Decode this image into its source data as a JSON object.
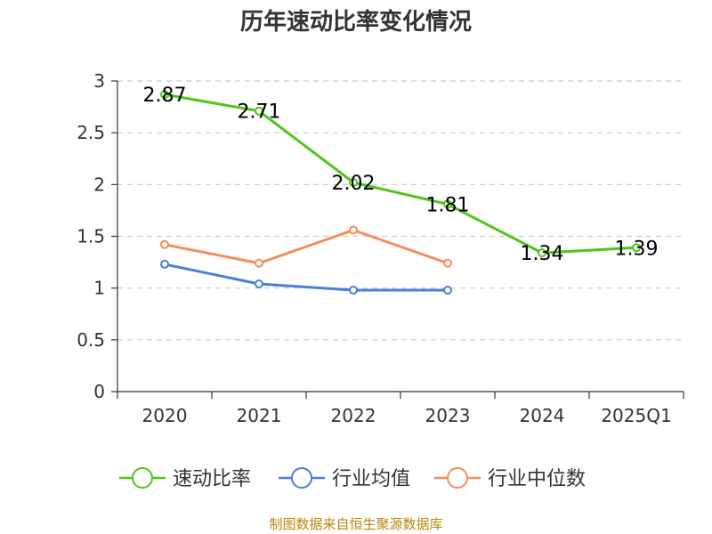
{
  "chart_data": {
    "type": "line",
    "title": "历年速动比率变化情况",
    "categories": [
      "2020",
      "2021",
      "2022",
      "2023",
      "2024",
      "2025Q1"
    ],
    "ylim": [
      0,
      3
    ],
    "yticks": [
      "0",
      "0.5",
      "1",
      "1.5",
      "2",
      "2.5",
      "3"
    ],
    "grid": true,
    "legend_position": "bottom",
    "series": [
      {
        "name": "速动比率",
        "color": "#52c41a",
        "values": [
          2.87,
          2.71,
          2.02,
          1.81,
          1.34,
          1.39
        ],
        "labels": [
          "2.87",
          "2.71",
          "2.02",
          "1.81",
          "1.34",
          "1.39"
        ]
      },
      {
        "name": "行业均值",
        "color": "#4a7fdc",
        "values": [
          1.23,
          1.04,
          0.98,
          0.98,
          null,
          null
        ]
      },
      {
        "name": "行业中位数",
        "color": "#f48d5a",
        "values": [
          1.42,
          1.24,
          1.56,
          1.24,
          null,
          null
        ]
      }
    ]
  },
  "footer": "制图数据来自恒生聚源数据库"
}
